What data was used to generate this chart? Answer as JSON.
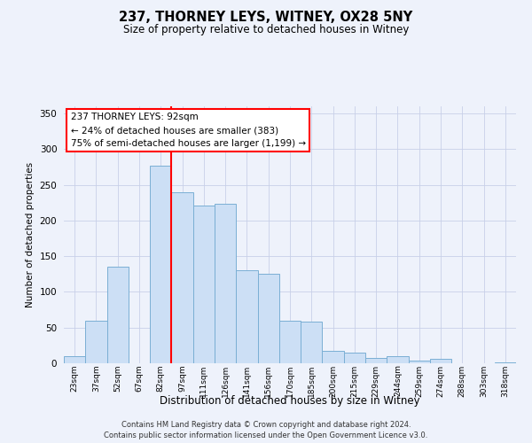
{
  "title": "237, THORNEY LEYS, WITNEY, OX28 5NY",
  "subtitle": "Size of property relative to detached houses in Witney",
  "xlabel": "Distribution of detached houses by size in Witney",
  "ylabel": "Number of detached properties",
  "categories": [
    "23sqm",
    "37sqm",
    "52sqm",
    "67sqm",
    "82sqm",
    "97sqm",
    "111sqm",
    "126sqm",
    "141sqm",
    "156sqm",
    "170sqm",
    "185sqm",
    "200sqm",
    "215sqm",
    "229sqm",
    "244sqm",
    "259sqm",
    "274sqm",
    "288sqm",
    "303sqm",
    "318sqm"
  ],
  "values": [
    10,
    59,
    135,
    0,
    277,
    240,
    221,
    223,
    130,
    125,
    59,
    58,
    18,
    15,
    8,
    10,
    4,
    6,
    0,
    0,
    1
  ],
  "bar_color": "#ccdff5",
  "bar_edge_color": "#7aafd4",
  "red_line_x": 4.5,
  "ylim": [
    0,
    360
  ],
  "yticks": [
    0,
    50,
    100,
    150,
    200,
    250,
    300,
    350
  ],
  "annotation_title": "237 THORNEY LEYS: 92sqm",
  "annotation_line1": "← 24% of detached houses are smaller (383)",
  "annotation_line2": "75% of semi-detached houses are larger (1,199) →",
  "footer_line1": "Contains HM Land Registry data © Crown copyright and database right 2024.",
  "footer_line2": "Contains public sector information licensed under the Open Government Licence v3.0.",
  "background_color": "#eef2fb",
  "plot_bg_color": "#eef2fb",
  "grid_color": "#c8d0e8"
}
